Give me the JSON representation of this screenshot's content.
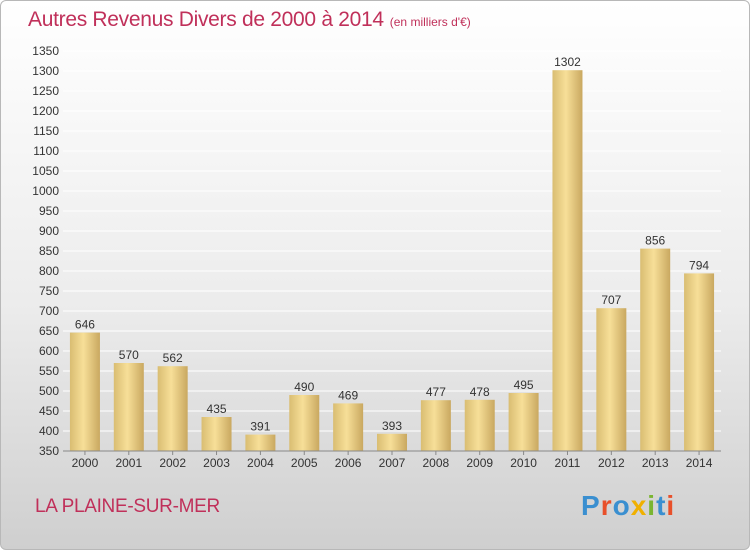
{
  "header": {
    "title": "Autres Revenus Divers de 2000 à 2014",
    "subtitle": "(en milliers d'€)"
  },
  "footer": {
    "commune": "LA PLAINE-SUR-MER",
    "logo_text": "Proxiti",
    "logo_colors": [
      "#3a8fd0",
      "#e8502a",
      "#3a8fd0",
      "#f0b000",
      "#7ab530",
      "#3a8fd0",
      "#e8502a"
    ]
  },
  "colors": {
    "bar_light": "#f7df98",
    "bar_dark": "#c9a860",
    "grid": "#ffffff",
    "title": "#c0305a"
  },
  "chart_data": {
    "type": "bar",
    "title": "Autres Revenus Divers de 2000 à 2014",
    "xlabel": "",
    "ylabel": "",
    "categories": [
      "2000",
      "2001",
      "2002",
      "2003",
      "2004",
      "2005",
      "2006",
      "2007",
      "2008",
      "2009",
      "2010",
      "2011",
      "2012",
      "2013",
      "2014"
    ],
    "values": [
      646,
      570,
      562,
      435,
      391,
      490,
      469,
      393,
      477,
      478,
      495,
      1302,
      707,
      856,
      794
    ],
    "ylim": [
      350,
      1350
    ],
    "yticks": [
      350,
      400,
      450,
      500,
      550,
      600,
      650,
      700,
      750,
      800,
      850,
      900,
      950,
      1000,
      1050,
      1100,
      1150,
      1200,
      1250,
      1300,
      1350
    ],
    "grid": true,
    "legend": "none"
  }
}
